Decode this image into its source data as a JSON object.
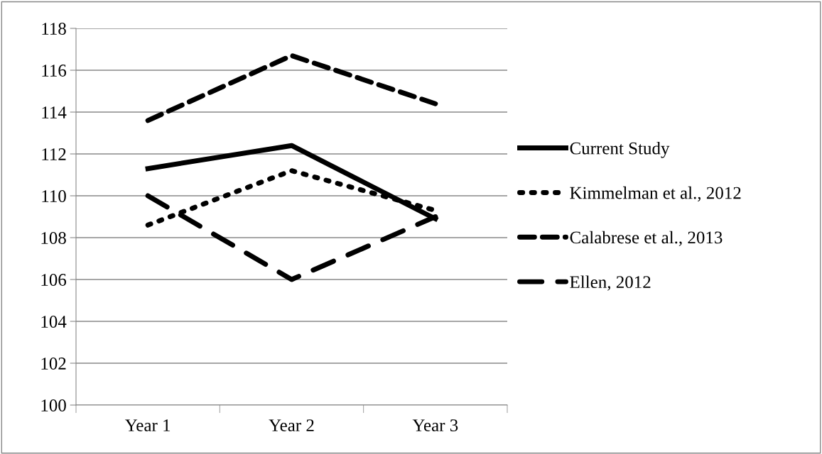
{
  "chart_data": {
    "type": "line",
    "categories": [
      "Year 1",
      "Year 2",
      "Year 3"
    ],
    "series": [
      {
        "name": "Current Study",
        "color": "#000000",
        "line_style": "solid",
        "values": [
          111.3,
          112.4,
          108.9
        ]
      },
      {
        "name": "Kimmelman et al., 2012",
        "color": "#000000",
        "line_style": "dotted",
        "values": [
          108.6,
          111.2,
          109.3
        ]
      },
      {
        "name": "Calabrese et al., 2013",
        "color": "#000000",
        "line_style": "dashed",
        "values": [
          113.6,
          116.7,
          114.4
        ]
      },
      {
        "name": "Ellen, 2012",
        "color": "#000000",
        "line_style": "longdash",
        "values": [
          110.0,
          106.0,
          109.0
        ]
      }
    ],
    "ylim": [
      100,
      118
    ],
    "yticks": [
      100,
      102,
      104,
      106,
      108,
      110,
      112,
      114,
      116,
      118
    ],
    "grid": "y",
    "legend": "right",
    "marker": "none"
  }
}
